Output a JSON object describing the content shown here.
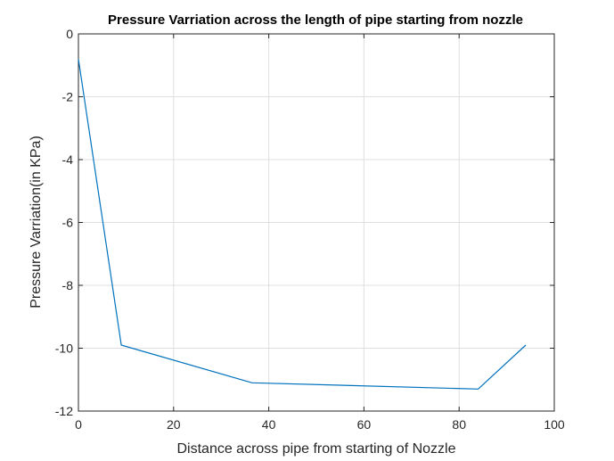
{
  "chart_data": {
    "type": "line",
    "title": "Pressure Varriation across the length of pipe starting from nozzle",
    "xlabel": "Distance across pipe from starting of Nozzle",
    "ylabel": "Pressure Varriation(in KPa)",
    "xlim": [
      0,
      100
    ],
    "ylim": [
      -12,
      0
    ],
    "xticks": [
      0,
      20,
      40,
      60,
      80,
      100
    ],
    "yticks": [
      0,
      -2,
      -4,
      -6,
      -8,
      -10,
      -12
    ],
    "grid": true,
    "series": [
      {
        "x": [
          0,
          9,
          36.5,
          84,
          94
        ],
        "y": [
          -0.8,
          -9.9,
          -11.1,
          -11.3,
          -9.9
        ],
        "color": "#0072bd"
      }
    ]
  }
}
